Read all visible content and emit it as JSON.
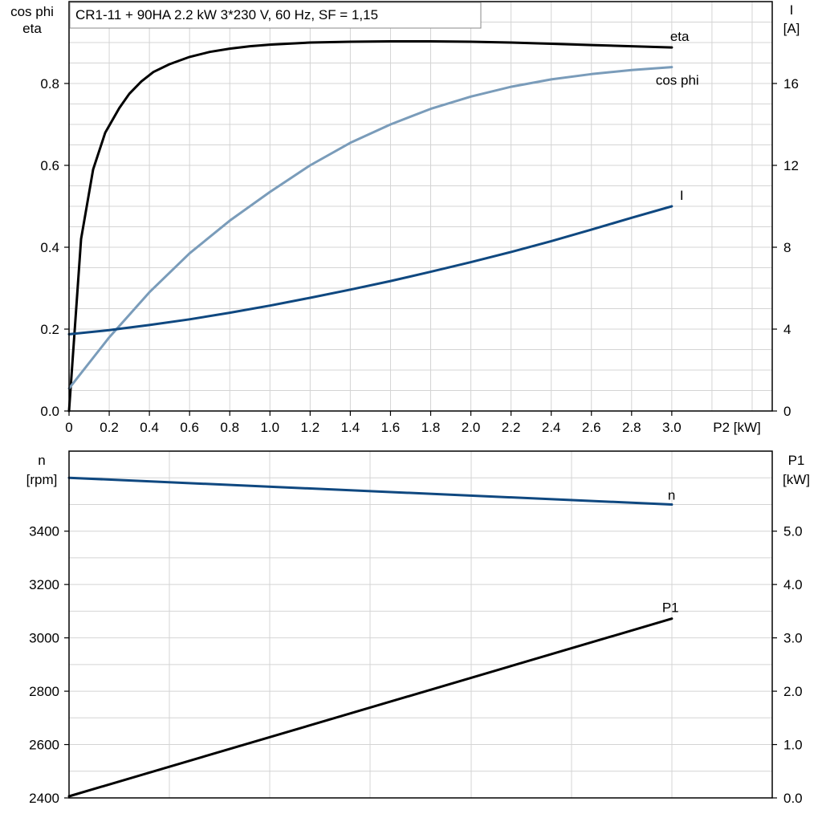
{
  "chart_data": [
    {
      "type": "line",
      "title": "CR1-11 + 90HA   2.2 kW   3*230 V, 60 Hz, SF = 1,15",
      "x_axis": {
        "label": "P2 [kW]",
        "range": [
          0,
          3.5
        ],
        "ticks": [
          "0",
          "0.2",
          "0.4",
          "0.6",
          "0.8",
          "1.0",
          "1.2",
          "1.4",
          "1.6",
          "1.8",
          "2.0",
          "2.2",
          "2.4",
          "2.6",
          "2.8",
          "3.0"
        ]
      },
      "y_left": {
        "label_line1": "cos phi",
        "label_line2": "eta",
        "range": [
          0,
          1.0
        ],
        "ticks": [
          0.0,
          0.2,
          0.4,
          0.6,
          0.8
        ],
        "tick_labels": [
          "0.0",
          "0.2",
          "0.4",
          "0.6",
          "0.8"
        ]
      },
      "y_right": {
        "label_line1": "I",
        "label_line2": "[A]",
        "range": [
          0,
          20
        ],
        "ticks": [
          0,
          4,
          8,
          12,
          16
        ],
        "tick_labels": [
          "0",
          "4",
          "8",
          "12",
          "16"
        ]
      },
      "grid": true,
      "series": [
        {
          "name": "eta",
          "axis": "left",
          "color": "#000000",
          "x": [
            0,
            0.06,
            0.12,
            0.18,
            0.25,
            0.3,
            0.36,
            0.42,
            0.5,
            0.6,
            0.7,
            0.8,
            0.9,
            1.0,
            1.2,
            1.4,
            1.6,
            1.8,
            2.0,
            2.2,
            2.4,
            2.6,
            2.8,
            3.0
          ],
          "y": [
            0.0,
            0.42,
            0.59,
            0.68,
            0.74,
            0.775,
            0.805,
            0.828,
            0.847,
            0.865,
            0.877,
            0.885,
            0.891,
            0.895,
            0.9,
            0.902,
            0.903,
            0.903,
            0.902,
            0.9,
            0.897,
            0.894,
            0.891,
            0.888
          ]
        },
        {
          "name": "cos phi",
          "axis": "left",
          "color": "#7a9cba",
          "x": [
            0,
            0.2,
            0.4,
            0.6,
            0.8,
            1.0,
            1.2,
            1.4,
            1.6,
            1.8,
            2.0,
            2.2,
            2.4,
            2.6,
            2.8,
            3.0
          ],
          "y": [
            0.055,
            0.18,
            0.29,
            0.385,
            0.465,
            0.535,
            0.6,
            0.655,
            0.7,
            0.738,
            0.768,
            0.792,
            0.81,
            0.823,
            0.833,
            0.84
          ]
        },
        {
          "name": "I",
          "axis": "right",
          "color": "#0f4880",
          "x": [
            0,
            0.2,
            0.4,
            0.6,
            0.8,
            1.0,
            1.2,
            1.4,
            1.6,
            1.8,
            2.0,
            2.2,
            2.4,
            2.6,
            2.8,
            3.0
          ],
          "y": [
            3.75,
            3.95,
            4.2,
            4.48,
            4.8,
            5.15,
            5.53,
            5.93,
            6.35,
            6.8,
            7.27,
            7.77,
            8.3,
            8.86,
            9.44,
            10.0
          ]
        }
      ]
    },
    {
      "type": "line",
      "x_axis": {
        "range": [
          0,
          3.5
        ]
      },
      "y_left": {
        "label_line1": "n",
        "label_line2": "[rpm]",
        "range": [
          2400,
          3700
        ],
        "ticks": [
          2400,
          2600,
          2800,
          3000,
          3200,
          3400
        ],
        "tick_labels": [
          "2400",
          "2600",
          "2800",
          "3000",
          "3200",
          "3400"
        ]
      },
      "y_right": {
        "label_line1": "P1",
        "label_line2": "[kW]",
        "range": [
          0,
          6.5
        ],
        "ticks": [
          0,
          1,
          2,
          3,
          4,
          5
        ],
        "tick_labels": [
          "0.0",
          "1.0",
          "2.0",
          "3.0",
          "4.0",
          "5.0"
        ]
      },
      "grid": true,
      "series": [
        {
          "name": "n",
          "axis": "left",
          "color": "#0f4880",
          "x": [
            0,
            3.0
          ],
          "y": [
            3600,
            3500
          ]
        },
        {
          "name": "P1",
          "axis": "right",
          "color": "#000000",
          "x": [
            0,
            3.0
          ],
          "y": [
            0.03,
            3.36
          ]
        }
      ]
    }
  ]
}
